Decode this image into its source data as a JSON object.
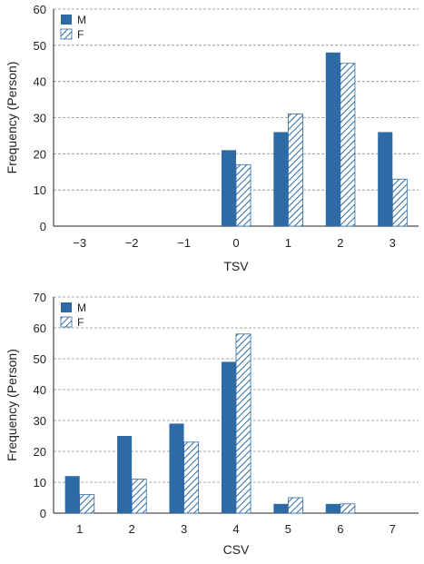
{
  "colors": {
    "male": "#2e6aa6",
    "female_hatch": "#2e6aa6",
    "grid": "#8c8c8c",
    "axis": "#222222"
  },
  "chart_data": [
    {
      "type": "bar",
      "categories": [
        "−3",
        "−2",
        "−1",
        "0",
        "1",
        "2",
        "3"
      ],
      "series": [
        {
          "name": "M",
          "values": [
            0,
            0,
            0,
            21,
            26,
            48,
            26
          ]
        },
        {
          "name": "F",
          "values": [
            0,
            0,
            0,
            17,
            31,
            45,
            13
          ]
        }
      ],
      "title": "",
      "xlabel": "TSV",
      "ylabel": "Frequency (Person)",
      "ylim": [
        0,
        60
      ],
      "yticks": [
        "0",
        "10",
        "20",
        "30",
        "40",
        "50",
        "60"
      ],
      "legend_placement": "top-left",
      "grid": "horizontal dashed"
    },
    {
      "type": "bar",
      "categories": [
        "1",
        "2",
        "3",
        "4",
        "5",
        "6",
        "7"
      ],
      "series": [
        {
          "name": "M",
          "values": [
            12,
            25,
            29,
            49,
            3,
            3,
            0
          ]
        },
        {
          "name": "F",
          "values": [
            6,
            11,
            23,
            58,
            5,
            3,
            0
          ]
        }
      ],
      "title": "",
      "xlabel": "CSV",
      "ylabel": "Frequency (Person)",
      "ylim": [
        0,
        70
      ],
      "yticks": [
        "0",
        "10",
        "20",
        "30",
        "40",
        "50",
        "60",
        "70"
      ],
      "legend_placement": "top-left",
      "grid": "horizontal dashed"
    }
  ]
}
